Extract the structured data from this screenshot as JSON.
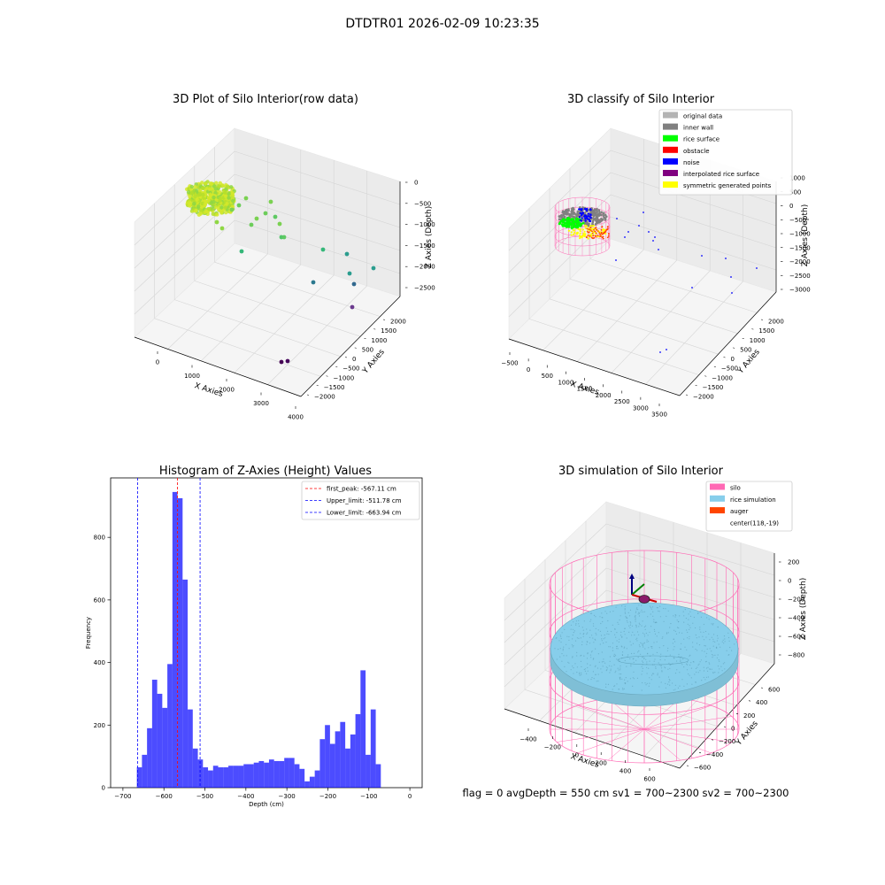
{
  "figure": {
    "suptitle": "DTDTR01 2026-02-09 10:23:35",
    "status_text": "flag = 0     avgDepth = 550 cm  sv1 = 700~2300  sv2 = 700~2300"
  },
  "colors": {
    "gray": "#b3b3b3",
    "wall": "#808080",
    "rice_surface": "#00ff00",
    "obstacle": "#ff0000",
    "noise": "#0000ff",
    "interp": "#800080",
    "symmetric": "#ffff00",
    "silo": "#ff69b4",
    "rice_sim": "#87ceeb",
    "auger": "#ff4500",
    "hist": "#0000ff",
    "peak": "#ff0000"
  },
  "chart_data": [
    {
      "type": "scatter",
      "title": "3D Plot of Silo Interior(row data)",
      "xlabel": "X Axies",
      "ylabel": "Y Axies",
      "zlabel": "Z Axies (Depth)",
      "x_ticks": [
        "0",
        "1000",
        "2000",
        "3000",
        "4000"
      ],
      "y_ticks": [
        "2000",
        "1500",
        "1000",
        "500",
        "0",
        "−500",
        "−1000",
        "−1500",
        "−2000"
      ],
      "z_ticks": [
        "0",
        "−500",
        "−1000",
        "−1500",
        "−2000",
        "−2500"
      ]
    },
    {
      "type": "scatter",
      "title": "3D classify of Silo Interior",
      "xlabel": "X Axies",
      "ylabel": "Y Axies",
      "zlabel": "Z Axies (Depth)",
      "x_ticks": [
        "−500",
        "0",
        "500",
        "1000",
        "1500",
        "2000",
        "2500",
        "3000",
        "3500"
      ],
      "y_ticks": [
        "2000",
        "1500",
        "1000",
        "500",
        "0",
        "−500",
        "−1000",
        "−1500",
        "−2000"
      ],
      "z_ticks": [
        "1000",
        "500",
        "0",
        "−500",
        "−1000",
        "−1500",
        "−2000",
        "−2500",
        "−3000"
      ],
      "legend": [
        {
          "label": "original data",
          "color": "#b3b3b3"
        },
        {
          "label": "inner wall",
          "color": "#808080"
        },
        {
          "label": "rice surface",
          "color": "#00ff00"
        },
        {
          "label": "obstacle",
          "color": "#ff0000"
        },
        {
          "label": "noise",
          "color": "#0000ff"
        },
        {
          "label": "interpolated rice surface",
          "color": "#800080"
        },
        {
          "label": "symmetric generated points",
          "color": "#ffff00"
        }
      ]
    },
    {
      "type": "bar",
      "title": "Histogram of Z-Axies (Height) Values",
      "xlabel": "Depth (cm)",
      "ylabel": "Frequency",
      "xlim": [
        -730,
        30
      ],
      "ylim": [
        0,
        990
      ],
      "x_ticks": [
        -700,
        -600,
        -500,
        -400,
        -300,
        -200,
        -100,
        0
      ],
      "x_tick_labels": [
        "−700",
        "−600",
        "−500",
        "−400",
        "−300",
        "−200",
        "−100",
        "0"
      ],
      "y_ticks": [
        0,
        200,
        400,
        600,
        800
      ],
      "y_tick_labels": [
        "0",
        "200",
        "400",
        "600",
        "800"
      ],
      "bin_start": -666,
      "bin_width": 12.4,
      "values": [
        65,
        105,
        190,
        345,
        300,
        255,
        395,
        945,
        925,
        665,
        250,
        125,
        90,
        65,
        55,
        70,
        65,
        65,
        70,
        70,
        70,
        75,
        75,
        80,
        85,
        80,
        90,
        85,
        85,
        95,
        95,
        75,
        60,
        20,
        35,
        55,
        155,
        200,
        140,
        180,
        210,
        125,
        170,
        235,
        375,
        105,
        250,
        75
      ],
      "vlines": [
        {
          "label": "first_peak: -567.11 cm",
          "x": -567.11,
          "color": "#ff0000"
        },
        {
          "label": "Upper_limit: -511.78 cm",
          "x": -511.78,
          "color": "#0000ff"
        },
        {
          "label": "Lower_limit: -663.94 cm",
          "x": -663.94,
          "color": "#0000ff"
        }
      ]
    },
    {
      "type": "scatter",
      "title": "3D simulation of Silo Interior",
      "xlabel": "X Axies",
      "ylabel": "Y Axies",
      "zlabel": "Z Axies (Depth)",
      "x_ticks": [
        "−400",
        "−200",
        "0",
        "200",
        "400",
        "600"
      ],
      "y_ticks": [
        "600",
        "400",
        "200",
        "0",
        "−200",
        "−400",
        "−600"
      ],
      "z_ticks": [
        "200",
        "0",
        "−200",
        "−400",
        "−600",
        "−800"
      ],
      "legend": [
        {
          "label": "silo",
          "color": "#ff69b4"
        },
        {
          "label": "rice simulation",
          "color": "#87ceeb"
        },
        {
          "label": "auger",
          "color": "#ff4500"
        },
        {
          "label": "center(118,-19)",
          "color": ""
        }
      ]
    }
  ]
}
